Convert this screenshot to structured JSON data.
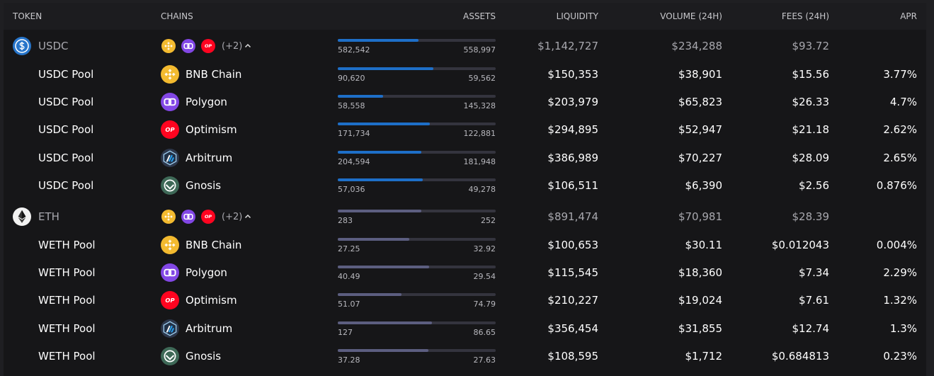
{
  "header": [
    "TOKEN",
    "CHAINS",
    "ASSETS",
    "LIQUIDITY",
    "VOLUME (24H)",
    "FEES (24H)",
    "APR"
  ],
  "more_label": "(+2)",
  "op_label": "OP",
  "groups": [
    {
      "token": "USDC",
      "assets": [
        "582,542",
        "558,997"
      ],
      "liquidity": "$1,142,727",
      "volume": "$234,288",
      "fees": "$93.72",
      "pools": [
        {
          "name": "USDC Pool",
          "chain": "BNB Chain",
          "assets": [
            "90,620",
            "59,562"
          ],
          "liquidity": "$150,353",
          "volume": "$38,901",
          "fees": "$15.56",
          "apr": "3.77%"
        },
        {
          "name": "USDC Pool",
          "chain": "Polygon",
          "assets": [
            "58,558",
            "145,328"
          ],
          "liquidity": "$203,979",
          "volume": "$65,823",
          "fees": "$26.33",
          "apr": "4.7%"
        },
        {
          "name": "USDC Pool",
          "chain": "Optimism",
          "assets": [
            "171,734",
            "122,881"
          ],
          "liquidity": "$294,895",
          "volume": "$52,947",
          "fees": "$21.18",
          "apr": "2.62%"
        },
        {
          "name": "USDC Pool",
          "chain": "Arbitrum",
          "assets": [
            "204,594",
            "181,948"
          ],
          "liquidity": "$386,989",
          "volume": "$70,227",
          "fees": "$28.09",
          "apr": "2.65%"
        },
        {
          "name": "USDC Pool",
          "chain": "Gnosis",
          "assets": [
            "57,036",
            "49,278"
          ],
          "liquidity": "$106,511",
          "volume": "$6,390",
          "fees": "$2.56",
          "apr": "0.876%"
        }
      ]
    },
    {
      "token": "ETH",
      "assets": [
        "283",
        "252"
      ],
      "liquidity": "$891,474",
      "volume": "$70,981",
      "fees": "$28.39",
      "pools": [
        {
          "name": "WETH Pool",
          "chain": "BNB Chain",
          "assets": [
            "27.25",
            "32.92"
          ],
          "liquidity": "$100,653",
          "volume": "$30.11",
          "fees": "$0.012043",
          "apr": "0.004%"
        },
        {
          "name": "WETH Pool",
          "chain": "Polygon",
          "assets": [
            "40.49",
            "29.54"
          ],
          "liquidity": "$115,545",
          "volume": "$18,360",
          "fees": "$7.34",
          "apr": "2.29%"
        },
        {
          "name": "WETH Pool",
          "chain": "Optimism",
          "assets": [
            "51.07",
            "74.79"
          ],
          "liquidity": "$210,227",
          "volume": "$19,024",
          "fees": "$7.61",
          "apr": "1.32%"
        },
        {
          "name": "WETH Pool",
          "chain": "Arbitrum",
          "assets": [
            "127",
            "86.65"
          ],
          "liquidity": "$356,454",
          "volume": "$31,855",
          "fees": "$12.74",
          "apr": "1.3%"
        },
        {
          "name": "WETH Pool",
          "chain": "Gnosis",
          "assets": [
            "37.28",
            "27.63"
          ],
          "liquidity": "$108,595",
          "volume": "$1,712",
          "fees": "$0.684813",
          "apr": "0.23%"
        }
      ]
    }
  ]
}
